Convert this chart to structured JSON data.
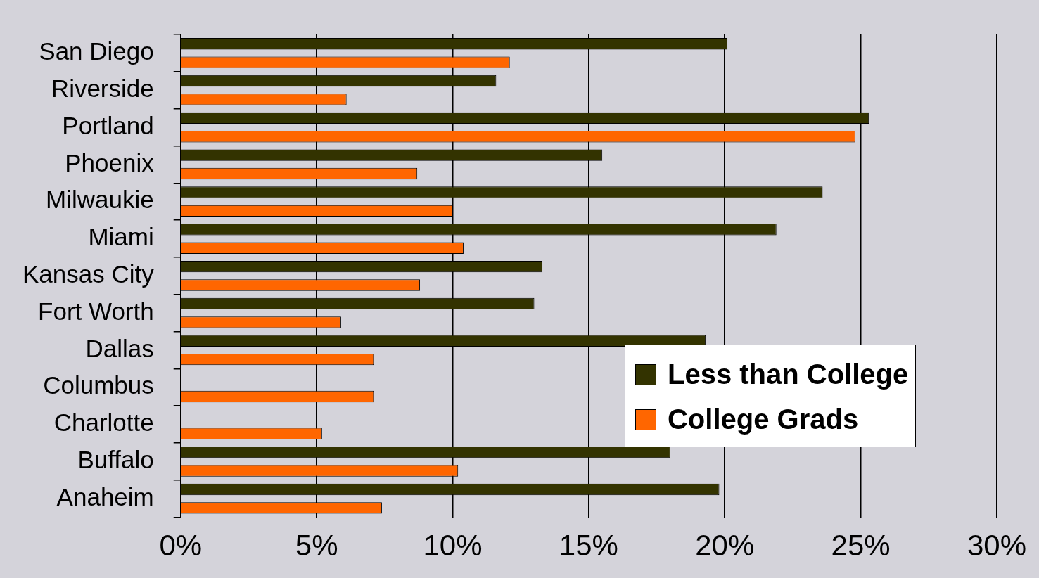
{
  "chart_data": {
    "type": "bar",
    "orientation": "horizontal",
    "categories": [
      "San Diego",
      "Riverside",
      "Portland",
      "Phoenix",
      "Milwaukie",
      "Miami",
      "Kansas City",
      "Fort Worth",
      "Dallas",
      "Columbus",
      "Charlotte",
      "Buffalo",
      "Anaheim"
    ],
    "series": [
      {
        "name": "Less than College",
        "color": "#333300",
        "values": [
          20.1,
          11.6,
          25.3,
          15.5,
          23.6,
          21.9,
          13.3,
          13.0,
          19.3,
          null,
          null,
          18.0,
          19.8
        ]
      },
      {
        "name": "College Grads",
        "color": "#ff6600",
        "values": [
          12.1,
          6.1,
          24.8,
          8.7,
          10.0,
          10.4,
          8.8,
          5.9,
          7.1,
          7.1,
          5.2,
          10.2,
          7.4
        ]
      }
    ],
    "xlim": [
      0,
      30
    ],
    "xticks": [
      {
        "value": 0,
        "label": "0%"
      },
      {
        "value": 5,
        "label": "5%"
      },
      {
        "value": 10,
        "label": "10%"
      },
      {
        "value": 15,
        "label": "15%"
      },
      {
        "value": 20,
        "label": "20%"
      },
      {
        "value": 25,
        "label": "25%"
      },
      {
        "value": 30,
        "label": "30%"
      }
    ],
    "grid": "x",
    "legend": "bottom right"
  }
}
